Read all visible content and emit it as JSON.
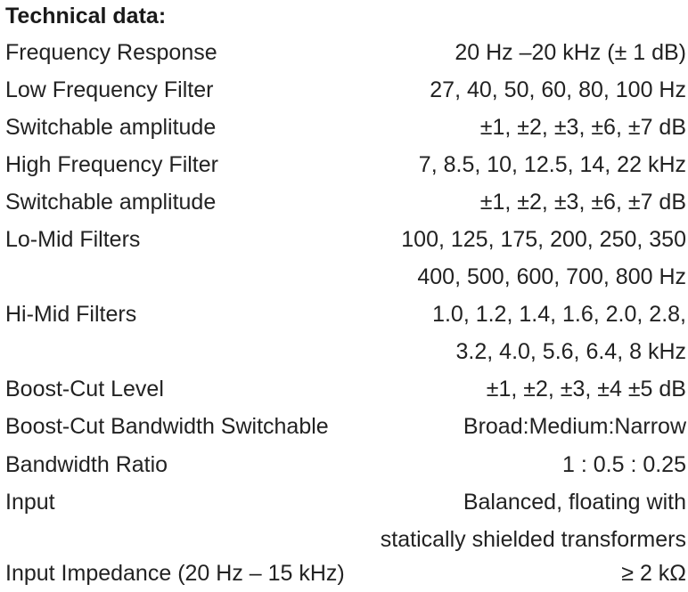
{
  "heading": "Technical data:",
  "rows": [
    {
      "label": "Frequency Response",
      "value": "20 Hz –20 kHz (± 1 dB)"
    },
    {
      "label": "Low Frequency Filter",
      "value": "27, 40, 50, 60, 80, 100 Hz"
    },
    {
      "label": "Switchable amplitude",
      "value": "±1, ±2, ±3, ±6, ±7 dB"
    },
    {
      "label": "High Frequency Filter",
      "value": "7, 8.5, 10, 12.5, 14, 22 kHz"
    },
    {
      "label": "Switchable amplitude",
      "value": "±1, ±2, ±3, ±6, ±7 dB"
    },
    {
      "label": "Lo-Mid Filters",
      "value": "100, 125, 175, 200, 250, 350"
    },
    {
      "label": "",
      "value": "400, 500, 600, 700, 800 Hz"
    },
    {
      "label": "Hi-Mid Filters",
      "value": "1.0, 1.2, 1.4, 1.6, 2.0, 2.8,"
    },
    {
      "label": "",
      "value": "3.2, 4.0, 5.6, 6.4, 8 kHz"
    },
    {
      "label": "Boost-Cut Level",
      "value": "±1, ±2, ±3, ±4 ±5 dB"
    },
    {
      "label": "Boost-Cut Bandwidth Switchable",
      "value": "Broad:Medium:Narrow"
    },
    {
      "label": "Bandwidth Ratio",
      "value": "1 : 0.5 : 0.25"
    },
    {
      "label": "Input",
      "value": "Balanced, floating with"
    },
    {
      "label": "",
      "value": "statically shielded transformers"
    },
    {
      "label": "Input Impedance (20 Hz – 15 kHz)",
      "value": "≥ 2 kΩ"
    }
  ]
}
